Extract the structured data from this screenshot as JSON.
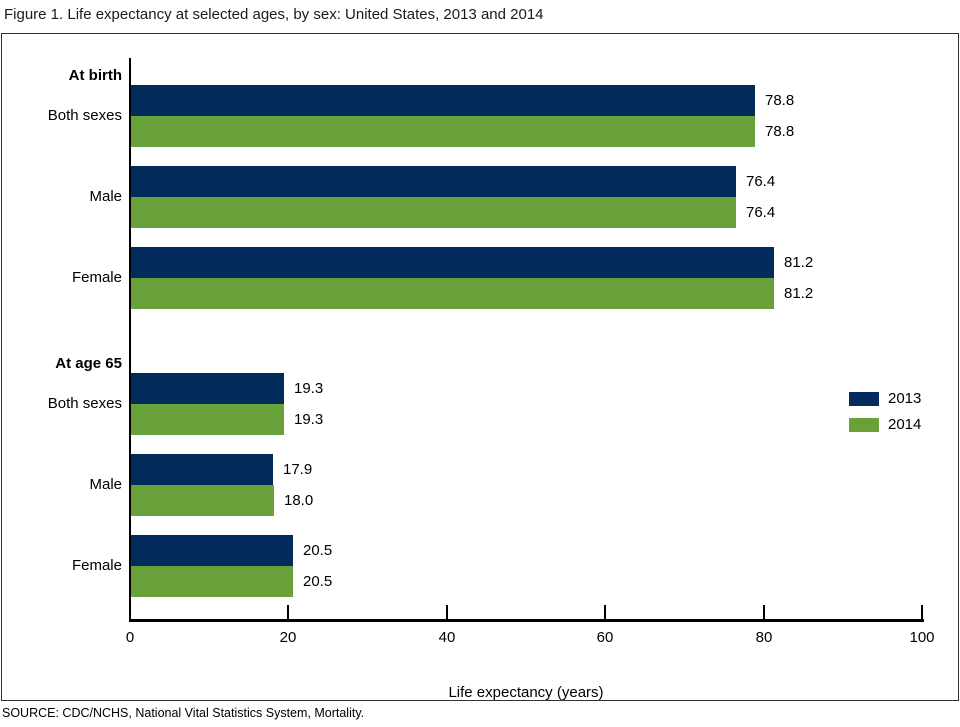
{
  "title": "Figure 1. Life expectancy at selected ages, by sex: United States, 2013 and 2014",
  "source": "SOURCE: CDC/NCHS, National Vital Statistics System, Mortality.",
  "colors": {
    "series_2013": "#032b5c",
    "series_2014": "#68a03a",
    "axis": "#000000",
    "border": "#333333"
  },
  "chart_data": {
    "type": "bar",
    "orientation": "horizontal",
    "title": "Figure 1. Life expectancy at selected ages, by sex: United States, 2013 and 2014",
    "xlabel": "Life expectancy (years)",
    "xlim": [
      0,
      100
    ],
    "xticks": [
      "0",
      "20",
      "40",
      "60",
      "80",
      "100"
    ],
    "grid": false,
    "legend_position": "right",
    "legend": [
      "2013",
      "2014"
    ],
    "groups": [
      {
        "group_label": "At birth",
        "categories": [
          "Both sexes",
          "Male",
          "Female"
        ],
        "series": [
          {
            "name": "2013",
            "color": "#032b5c",
            "values": [
              78.8,
              76.4,
              81.2
            ],
            "value_labels": [
              "78.8",
              "76.4",
              "81.2"
            ]
          },
          {
            "name": "2014",
            "color": "#68a03a",
            "values": [
              78.8,
              76.4,
              81.2
            ],
            "value_labels": [
              "78.8",
              "76.4",
              "81.2"
            ]
          }
        ]
      },
      {
        "group_label": "At age 65",
        "categories": [
          "Both sexes",
          "Male",
          "Female"
        ],
        "series": [
          {
            "name": "2013",
            "color": "#032b5c",
            "values": [
              19.3,
              17.9,
              20.5
            ],
            "value_labels": [
              "19.3",
              "17.9",
              "20.5"
            ]
          },
          {
            "name": "2014",
            "color": "#68a03a",
            "values": [
              19.3,
              18.0,
              20.5
            ],
            "value_labels": [
              "19.3",
              "18.0",
              "20.5"
            ]
          }
        ]
      }
    ]
  }
}
